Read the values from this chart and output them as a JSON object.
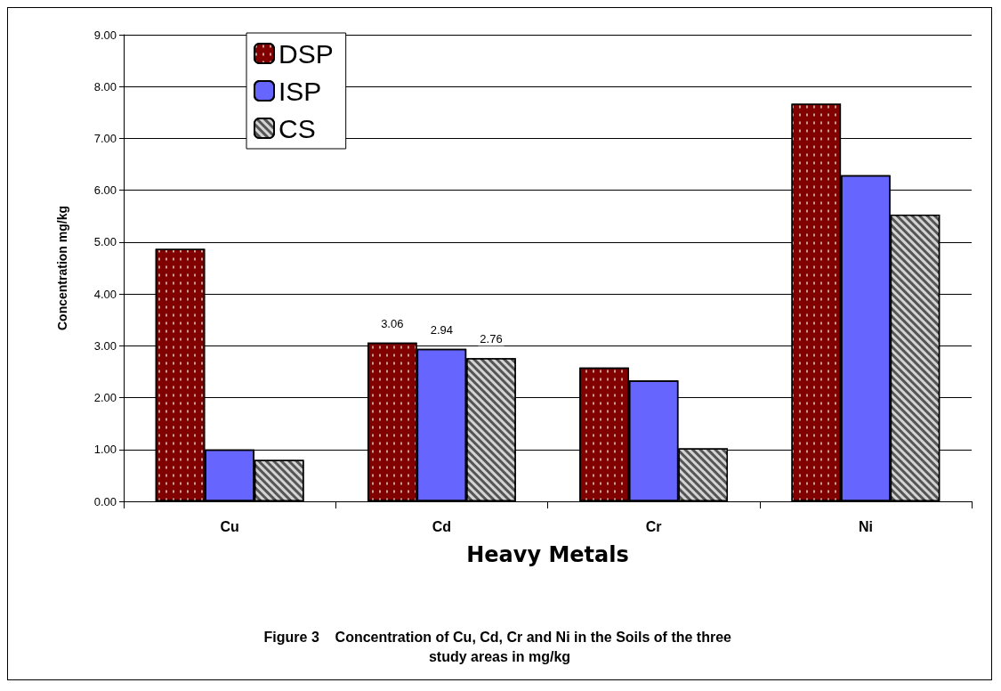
{
  "chart_data": {
    "type": "bar",
    "title": "Figure 3    Concentration of Cu, Cd, Cr and Ni in the Soils of the three study areas in mg/kg",
    "xlabel": "Heavy Metals",
    "ylabel": "Concentration mg/kg",
    "categories": [
      "Cu",
      "Cd",
      "Cr",
      "Ni"
    ],
    "series": [
      {
        "name": "DSP",
        "color": "#800000",
        "values": [
          4.87,
          3.06,
          2.58,
          7.67
        ],
        "value_labels": [
          null,
          "3.06",
          null,
          null
        ]
      },
      {
        "name": "ISP",
        "color": "#6666ff",
        "values": [
          1.0,
          2.94,
          2.33,
          6.29
        ],
        "value_labels": [
          null,
          "2.94",
          null,
          null
        ]
      },
      {
        "name": "CS",
        "color": "#555555",
        "values": [
          0.8,
          2.76,
          1.02,
          5.53
        ],
        "value_labels": [
          null,
          "2.76",
          null,
          null
        ]
      }
    ],
    "ylim": [
      0,
      9
    ],
    "yticks": [
      {
        "value": 0,
        "label": "0.00"
      },
      {
        "value": 1,
        "label": "1.00"
      },
      {
        "value": 2,
        "label": "2.00"
      },
      {
        "value": 3,
        "label": "3.00"
      },
      {
        "value": 4,
        "label": "4.00"
      },
      {
        "value": 5,
        "label": "5.00"
      },
      {
        "value": 6,
        "label": "6.00"
      },
      {
        "value": 7,
        "label": "7.00"
      },
      {
        "value": 8,
        "label": "8.00"
      },
      {
        "value": 9,
        "label": "9.00"
      }
    ],
    "grid": "y",
    "legend": "top left"
  }
}
